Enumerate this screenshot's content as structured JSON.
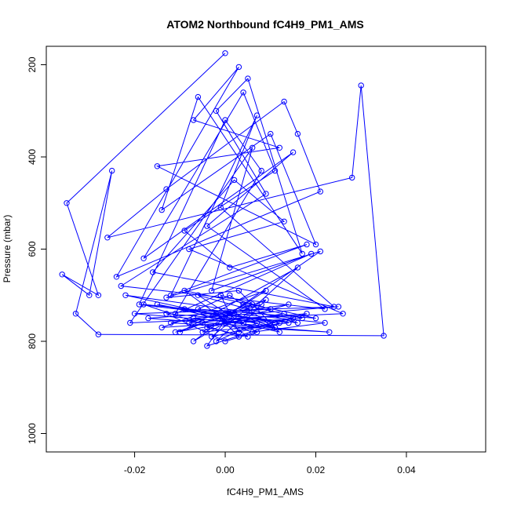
{
  "chart_data": {
    "type": "line",
    "title": "ATOM2 Northbound fC4H9_PM1_AMS",
    "xlabel": "fC4H9_PM1_AMS",
    "ylabel": "Pressure (mbar)",
    "xlim": [
      -0.0395,
      0.0575
    ],
    "ylim": [
      1040,
      160
    ],
    "y_reversed": true,
    "x_ticks": [
      -0.02,
      0.0,
      0.02,
      0.04
    ],
    "x_tick_labels": [
      "-0.02",
      "0.00",
      "0.02",
      "0.04"
    ],
    "y_ticks": [
      200,
      400,
      600,
      800,
      1000
    ],
    "y_tick_labels": [
      "200",
      "400",
      "600",
      "800",
      "1000"
    ],
    "grid": false,
    "legend": "none",
    "series_color": "#0000ff",
    "marker": "open-circle",
    "series": [
      {
        "x": [
          0.0,
          -0.035,
          -0.028,
          -0.036,
          -0.03,
          -0.025,
          -0.033,
          -0.028,
          0.035,
          0.03,
          0.028,
          -0.026,
          -0.013,
          0.013,
          0.016,
          0.021,
          -0.024,
          0.003,
          -0.007,
          0.012,
          -0.015,
          0.02,
          0.01,
          -0.014,
          -0.006,
          0.017,
          0.005,
          -0.002,
          0.009,
          -0.023,
          0.022,
          -0.004,
          0.015,
          -0.018,
          0.004,
          0.011,
          -0.009,
          0.001,
          0.018,
          -0.012,
          0.007,
          -0.001,
          0.024,
          -0.016,
          0.002,
          0.013,
          -0.008,
          0.026,
          -0.021,
          0.006,
          -0.003,
          0.019,
          -0.011,
          0.008,
          0.0,
          -0.019,
          0.014,
          -0.005,
          0.021,
          -0.013,
          0.003,
          0.011,
          -0.007,
          0.025,
          -0.02,
          0.004,
          0.009,
          -0.01,
          0.016,
          -0.002,
          0.007,
          -0.015,
          0.012,
          0.001,
          -0.006,
          0.02,
          -0.009,
          0.005,
          -0.004,
          0.014,
          0.0,
          -0.012,
          0.023,
          -0.017,
          0.01,
          -0.001,
          0.003,
          0.018,
          -0.008,
          0.006,
          -0.003,
          0.015,
          -0.022,
          0.011,
          0.002,
          -0.005,
          0.008,
          -0.011,
          0.013,
          0.0,
          -0.007,
          0.004,
          0.017,
          -0.014,
          0.009,
          0.001,
          -0.004,
          0.012,
          -0.009,
          0.006,
          0.022,
          -0.018,
          0.003,
          -0.002,
          0.016,
          -0.006,
          0.007,
          0.0,
          -0.013,
          0.011
        ],
        "y": [
          175,
          500,
          700,
          655,
          700,
          430,
          740,
          785,
          788,
          245,
          445,
          575,
          470,
          280,
          350,
          475,
          660,
          205,
          320,
          380,
          420,
          590,
          350,
          515,
          270,
          610,
          230,
          300,
          480,
          680,
          730,
          550,
          390,
          620,
          260,
          430,
          560,
          640,
          590,
          700,
          310,
          510,
          725,
          650,
          450,
          540,
          600,
          740,
          760,
          380,
          690,
          610,
          740,
          430,
          320,
          720,
          760,
          780,
          605,
          705,
          690,
          770,
          750,
          725,
          740,
          760,
          710,
          780,
          640,
          800,
          760,
          720,
          780,
          700,
          730,
          750,
          690,
          790,
          770,
          720,
          740,
          760,
          780,
          750,
          730,
          700,
          780,
          740,
          760,
          720,
          790,
          750,
          700,
          770,
          740,
          760,
          720,
          780,
          740,
          760,
          800,
          720,
          750,
          770,
          690,
          740,
          810,
          760,
          730,
          780,
          760,
          720,
          790,
          740,
          760,
          700,
          780,
          800,
          740,
          760
        ]
      }
    ]
  }
}
